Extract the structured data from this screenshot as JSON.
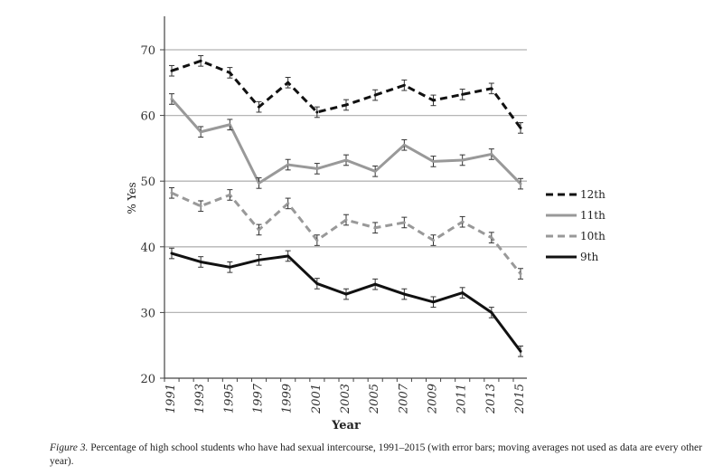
{
  "chart_data": {
    "type": "line",
    "title": "",
    "xlabel": "Year",
    "ylabel": "% Yes",
    "ylim": [
      20,
      70
    ],
    "yticks": [
      20,
      30,
      40,
      50,
      60,
      70
    ],
    "grid": true,
    "legend_position": "right",
    "error_bars": true,
    "categories": [
      "1991",
      "1993",
      "1995",
      "1997",
      "1999",
      "2001",
      "2003",
      "2005",
      "2007",
      "2009",
      "2011",
      "2013",
      "2015"
    ],
    "series": [
      {
        "name": "12th",
        "style": "dashed",
        "color": "#111111",
        "values": [
          66.8,
          68.3,
          66.5,
          61.3,
          65.0,
          60.5,
          61.6,
          63.1,
          64.6,
          62.3,
          63.2,
          64.1,
          58.1
        ]
      },
      {
        "name": "11th",
        "style": "solid",
        "color": "#999999",
        "values": [
          62.5,
          57.5,
          58.6,
          49.7,
          52.5,
          51.9,
          53.2,
          51.5,
          55.5,
          53.0,
          53.2,
          54.1,
          49.6
        ]
      },
      {
        "name": "10th",
        "style": "dashed",
        "color": "#999999",
        "values": [
          48.2,
          46.2,
          47.9,
          42.6,
          46.6,
          41.0,
          44.1,
          42.9,
          43.7,
          41.0,
          43.8,
          41.4,
          35.9
        ]
      },
      {
        "name": "9th",
        "style": "solid",
        "color": "#111111",
        "values": [
          39.0,
          37.7,
          36.9,
          38.0,
          38.6,
          34.4,
          32.8,
          34.3,
          32.8,
          31.6,
          33.0,
          30.0,
          24.1
        ]
      }
    ],
    "error_margin": 0.8
  },
  "caption": {
    "figure_label": "Figure 3.",
    "text": "Percentage of high school students who have had sexual intercourse, 1991–2015 (with error bars; moving averages not used as data are every other year)."
  }
}
